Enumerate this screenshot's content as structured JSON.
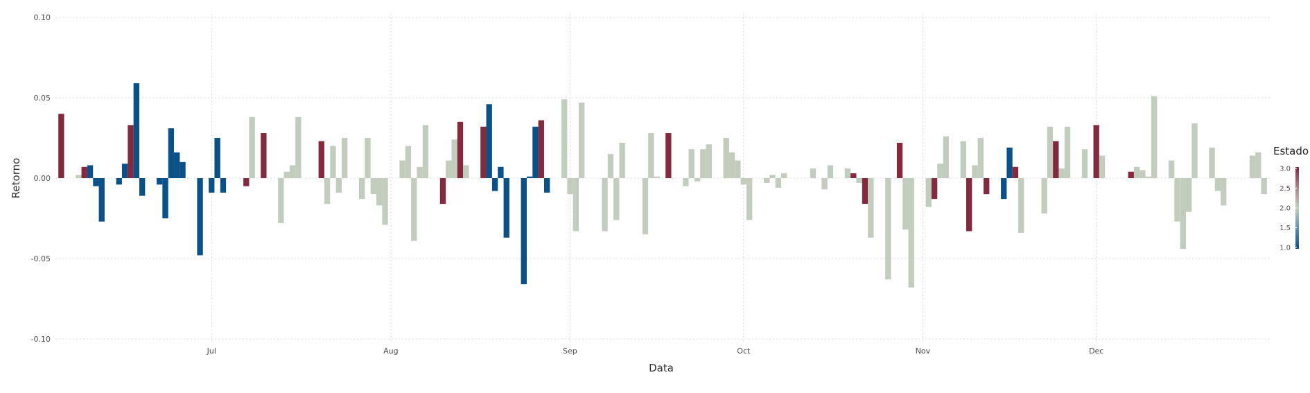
{
  "chart_data": {
    "type": "bar",
    "title": "",
    "xlabel": "Data",
    "ylabel": "Retorno",
    "ylim": [
      -0.1,
      0.1
    ],
    "yticks": [
      -0.1,
      -0.05,
      0.0,
      0.05,
      0.1
    ],
    "ytick_labels": [
      "-0.10",
      "-0.05",
      "0.00",
      "0.05",
      "0.10"
    ],
    "xlim": [
      "2025-06-04",
      "2025-12-31"
    ],
    "xticks": [
      {
        "date": "2025-07-01",
        "label": "Jul"
      },
      {
        "date": "2025-08-01",
        "label": "Aug"
      },
      {
        "date": "2025-09-01",
        "label": "Sep"
      },
      {
        "date": "2025-10-01",
        "label": "Oct"
      },
      {
        "date": "2025-11-01",
        "label": "Nov"
      },
      {
        "date": "2025-12-01",
        "label": "Dec"
      }
    ],
    "grid": true,
    "legend": {
      "title": "Estado",
      "placement": "right",
      "type": "colorbar",
      "ticks": [
        "3.0",
        "2.5",
        "2.0",
        "1.5",
        "1.0"
      ],
      "range": [
        1,
        3
      ],
      "colors": {
        "low": "#0c5088",
        "mid": "#c2cdbd",
        "high": "#832a3e"
      }
    },
    "state_colors": {
      "1": "#0c5088",
      "2": "#c2cdbd",
      "3": "#832a3e"
    },
    "points": [
      {
        "date": "2025-06-05",
        "value": 0.04,
        "state": 3
      },
      {
        "date": "2025-06-08",
        "value": 0.002,
        "state": 2
      },
      {
        "date": "2025-06-09",
        "value": 0.007,
        "state": 3
      },
      {
        "date": "2025-06-10",
        "value": 0.008,
        "state": 1
      },
      {
        "date": "2025-06-11",
        "value": -0.005,
        "state": 1
      },
      {
        "date": "2025-06-12",
        "value": -0.027,
        "state": 1
      },
      {
        "date": "2025-06-15",
        "value": -0.004,
        "state": 1
      },
      {
        "date": "2025-06-16",
        "value": 0.009,
        "state": 1
      },
      {
        "date": "2025-06-17",
        "value": 0.033,
        "state": 3
      },
      {
        "date": "2025-06-18",
        "value": 0.059,
        "state": 1
      },
      {
        "date": "2025-06-19",
        "value": -0.011,
        "state": 1
      },
      {
        "date": "2025-06-22",
        "value": -0.004,
        "state": 1
      },
      {
        "date": "2025-06-23",
        "value": -0.025,
        "state": 1
      },
      {
        "date": "2025-06-24",
        "value": 0.031,
        "state": 1
      },
      {
        "date": "2025-06-25",
        "value": 0.016,
        "state": 1
      },
      {
        "date": "2025-06-26",
        "value": 0.01,
        "state": 1
      },
      {
        "date": "2025-06-29",
        "value": -0.048,
        "state": 1
      },
      {
        "date": "2025-07-01",
        "value": -0.009,
        "state": 1
      },
      {
        "date": "2025-07-02",
        "value": 0.025,
        "state": 1
      },
      {
        "date": "2025-07-03",
        "value": -0.009,
        "state": 1
      },
      {
        "date": "2025-07-07",
        "value": -0.005,
        "state": 3
      },
      {
        "date": "2025-07-08",
        "value": 0.038,
        "state": 2
      },
      {
        "date": "2025-07-10",
        "value": 0.028,
        "state": 3
      },
      {
        "date": "2025-07-13",
        "value": -0.028,
        "state": 2
      },
      {
        "date": "2025-07-14",
        "value": 0.004,
        "state": 2
      },
      {
        "date": "2025-07-15",
        "value": 0.008,
        "state": 2
      },
      {
        "date": "2025-07-16",
        "value": 0.038,
        "state": 2
      },
      {
        "date": "2025-07-20",
        "value": 0.023,
        "state": 3
      },
      {
        "date": "2025-07-21",
        "value": -0.016,
        "state": 2
      },
      {
        "date": "2025-07-22",
        "value": 0.02,
        "state": 2
      },
      {
        "date": "2025-07-23",
        "value": -0.009,
        "state": 2
      },
      {
        "date": "2025-07-24",
        "value": 0.025,
        "state": 2
      },
      {
        "date": "2025-07-27",
        "value": -0.013,
        "state": 2
      },
      {
        "date": "2025-07-28",
        "value": 0.025,
        "state": 2
      },
      {
        "date": "2025-07-29",
        "value": -0.01,
        "state": 2
      },
      {
        "date": "2025-07-30",
        "value": -0.017,
        "state": 2
      },
      {
        "date": "2025-07-31",
        "value": -0.029,
        "state": 2
      },
      {
        "date": "2025-08-03",
        "value": 0.011,
        "state": 2
      },
      {
        "date": "2025-08-04",
        "value": 0.02,
        "state": 2
      },
      {
        "date": "2025-08-05",
        "value": -0.039,
        "state": 2
      },
      {
        "date": "2025-08-06",
        "value": 0.007,
        "state": 2
      },
      {
        "date": "2025-08-07",
        "value": 0.033,
        "state": 2
      },
      {
        "date": "2025-08-10",
        "value": -0.016,
        "state": 3
      },
      {
        "date": "2025-08-11",
        "value": 0.011,
        "state": 2
      },
      {
        "date": "2025-08-12",
        "value": 0.024,
        "state": 2
      },
      {
        "date": "2025-08-13",
        "value": 0.035,
        "state": 3
      },
      {
        "date": "2025-08-14",
        "value": 0.008,
        "state": 2
      },
      {
        "date": "2025-08-17",
        "value": 0.032,
        "state": 3
      },
      {
        "date": "2025-08-18",
        "value": 0.046,
        "state": 1
      },
      {
        "date": "2025-08-19",
        "value": -0.008,
        "state": 1
      },
      {
        "date": "2025-08-20",
        "value": 0.007,
        "state": 1
      },
      {
        "date": "2025-08-21",
        "value": -0.037,
        "state": 1
      },
      {
        "date": "2025-08-24",
        "value": -0.066,
        "state": 1
      },
      {
        "date": "2025-08-25",
        "value": 0.001,
        "state": 1
      },
      {
        "date": "2025-08-26",
        "value": 0.032,
        "state": 1
      },
      {
        "date": "2025-08-27",
        "value": 0.036,
        "state": 3
      },
      {
        "date": "2025-08-28",
        "value": -0.009,
        "state": 1
      },
      {
        "date": "2025-08-31",
        "value": 0.049,
        "state": 2
      },
      {
        "date": "2025-09-01",
        "value": -0.01,
        "state": 2
      },
      {
        "date": "2025-09-02",
        "value": -0.033,
        "state": 2
      },
      {
        "date": "2025-09-03",
        "value": 0.047,
        "state": 2
      },
      {
        "date": "2025-09-07",
        "value": -0.033,
        "state": 2
      },
      {
        "date": "2025-09-08",
        "value": 0.015,
        "state": 2
      },
      {
        "date": "2025-09-09",
        "value": -0.026,
        "state": 2
      },
      {
        "date": "2025-09-10",
        "value": 0.022,
        "state": 2
      },
      {
        "date": "2025-09-14",
        "value": -0.035,
        "state": 2
      },
      {
        "date": "2025-09-15",
        "value": 0.028,
        "state": 2
      },
      {
        "date": "2025-09-16",
        "value": 0.001,
        "state": 2
      },
      {
        "date": "2025-09-18",
        "value": 0.028,
        "state": 3
      },
      {
        "date": "2025-09-21",
        "value": -0.005,
        "state": 2
      },
      {
        "date": "2025-09-22",
        "value": 0.018,
        "state": 2
      },
      {
        "date": "2025-09-23",
        "value": -0.002,
        "state": 2
      },
      {
        "date": "2025-09-24",
        "value": 0.018,
        "state": 2
      },
      {
        "date": "2025-09-25",
        "value": 0.021,
        "state": 2
      },
      {
        "date": "2025-09-28",
        "value": 0.025,
        "state": 2
      },
      {
        "date": "2025-09-29",
        "value": 0.016,
        "state": 2
      },
      {
        "date": "2025-09-30",
        "value": 0.011,
        "state": 2
      },
      {
        "date": "2025-10-01",
        "value": -0.004,
        "state": 2
      },
      {
        "date": "2025-10-02",
        "value": -0.026,
        "state": 2
      },
      {
        "date": "2025-10-05",
        "value": -0.003,
        "state": 2
      },
      {
        "date": "2025-10-06",
        "value": 0.002,
        "state": 2
      },
      {
        "date": "2025-10-07",
        "value": -0.006,
        "state": 2
      },
      {
        "date": "2025-10-08",
        "value": 0.003,
        "state": 2
      },
      {
        "date": "2025-10-13",
        "value": 0.006,
        "state": 2
      },
      {
        "date": "2025-10-15",
        "value": -0.007,
        "state": 2
      },
      {
        "date": "2025-10-16",
        "value": 0.008,
        "state": 2
      },
      {
        "date": "2025-10-19",
        "value": 0.006,
        "state": 2
      },
      {
        "date": "2025-10-20",
        "value": 0.003,
        "state": 3
      },
      {
        "date": "2025-10-21",
        "value": -0.003,
        "state": 2
      },
      {
        "date": "2025-10-22",
        "value": -0.016,
        "state": 3
      },
      {
        "date": "2025-10-23",
        "value": -0.037,
        "state": 2
      },
      {
        "date": "2025-10-26",
        "value": -0.063,
        "state": 2
      },
      {
        "date": "2025-10-28",
        "value": 0.022,
        "state": 3
      },
      {
        "date": "2025-10-29",
        "value": -0.032,
        "state": 2
      },
      {
        "date": "2025-10-30",
        "value": -0.068,
        "state": 2
      },
      {
        "date": "2025-11-02",
        "value": -0.018,
        "state": 2
      },
      {
        "date": "2025-11-03",
        "value": -0.013,
        "state": 3
      },
      {
        "date": "2025-11-04",
        "value": 0.009,
        "state": 2
      },
      {
        "date": "2025-11-05",
        "value": 0.026,
        "state": 2
      },
      {
        "date": "2025-11-08",
        "value": 0.023,
        "state": 2
      },
      {
        "date": "2025-11-09",
        "value": -0.033,
        "state": 3
      },
      {
        "date": "2025-11-10",
        "value": 0.008,
        "state": 2
      },
      {
        "date": "2025-11-11",
        "value": 0.025,
        "state": 2
      },
      {
        "date": "2025-11-12",
        "value": -0.01,
        "state": 3
      },
      {
        "date": "2025-11-15",
        "value": -0.013,
        "state": 1
      },
      {
        "date": "2025-11-16",
        "value": 0.019,
        "state": 1
      },
      {
        "date": "2025-11-17",
        "value": 0.007,
        "state": 3
      },
      {
        "date": "2025-11-18",
        "value": -0.034,
        "state": 2
      },
      {
        "date": "2025-11-22",
        "value": -0.022,
        "state": 2
      },
      {
        "date": "2025-11-23",
        "value": 0.032,
        "state": 2
      },
      {
        "date": "2025-11-24",
        "value": 0.023,
        "state": 3
      },
      {
        "date": "2025-11-25",
        "value": 0.006,
        "state": 2
      },
      {
        "date": "2025-11-26",
        "value": 0.032,
        "state": 2
      },
      {
        "date": "2025-11-29",
        "value": 0.018,
        "state": 2
      },
      {
        "date": "2025-12-01",
        "value": 0.033,
        "state": 3
      },
      {
        "date": "2025-12-02",
        "value": 0.014,
        "state": 2
      },
      {
        "date": "2025-12-07",
        "value": 0.004,
        "state": 3
      },
      {
        "date": "2025-12-08",
        "value": 0.007,
        "state": 2
      },
      {
        "date": "2025-12-09",
        "value": 0.005,
        "state": 2
      },
      {
        "date": "2025-12-10",
        "value": 0.001,
        "state": 2
      },
      {
        "date": "2025-12-11",
        "value": 0.051,
        "state": 2
      },
      {
        "date": "2025-12-14",
        "value": 0.011,
        "state": 2
      },
      {
        "date": "2025-12-15",
        "value": -0.027,
        "state": 2
      },
      {
        "date": "2025-12-16",
        "value": -0.044,
        "state": 2
      },
      {
        "date": "2025-12-17",
        "value": -0.021,
        "state": 2
      },
      {
        "date": "2025-12-18",
        "value": 0.034,
        "state": 2
      },
      {
        "date": "2025-12-21",
        "value": 0.019,
        "state": 2
      },
      {
        "date": "2025-12-22",
        "value": -0.008,
        "state": 2
      },
      {
        "date": "2025-12-23",
        "value": -0.017,
        "state": 2
      },
      {
        "date": "2025-12-28",
        "value": 0.014,
        "state": 2
      },
      {
        "date": "2025-12-29",
        "value": 0.016,
        "state": 2
      },
      {
        "date": "2025-12-30",
        "value": -0.01,
        "state": 2
      }
    ]
  }
}
